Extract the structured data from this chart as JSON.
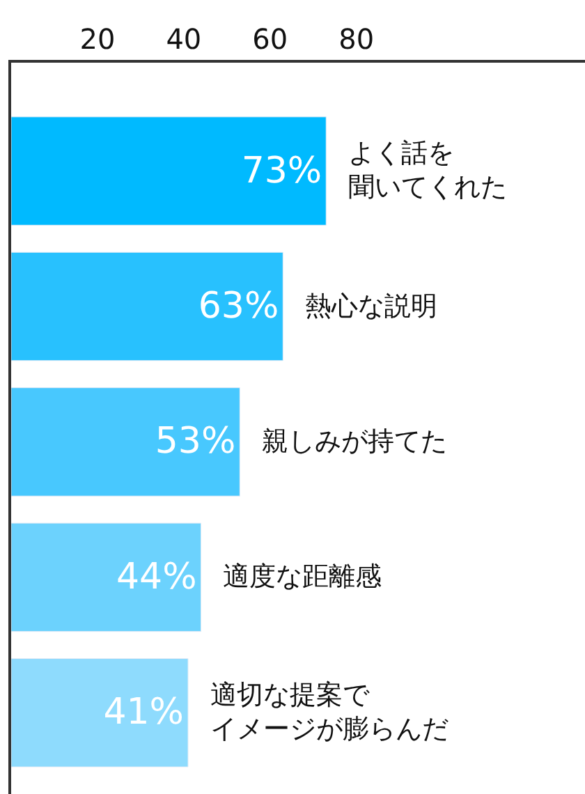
{
  "chart_data": {
    "type": "bar",
    "orientation": "horizontal",
    "categories": [
      "よく話を聞いてくれた",
      "熱心な説明",
      "親しみが持てた",
      "適度な距離感",
      "適切な提案でイメージが膨らんだ"
    ],
    "values": [
      73,
      63,
      53,
      44,
      41
    ],
    "colors": [
      "#00baff",
      "#28c1fe",
      "#48c8fe",
      "#6cd2fd",
      "#8edbfd"
    ],
    "value_labels": [
      "73%",
      "63%",
      "53%",
      "44%",
      "41%"
    ],
    "xlim": [
      0,
      133
    ],
    "xticks": [
      20,
      40,
      60,
      80
    ],
    "tick_labels": "x",
    "legend": false
  }
}
